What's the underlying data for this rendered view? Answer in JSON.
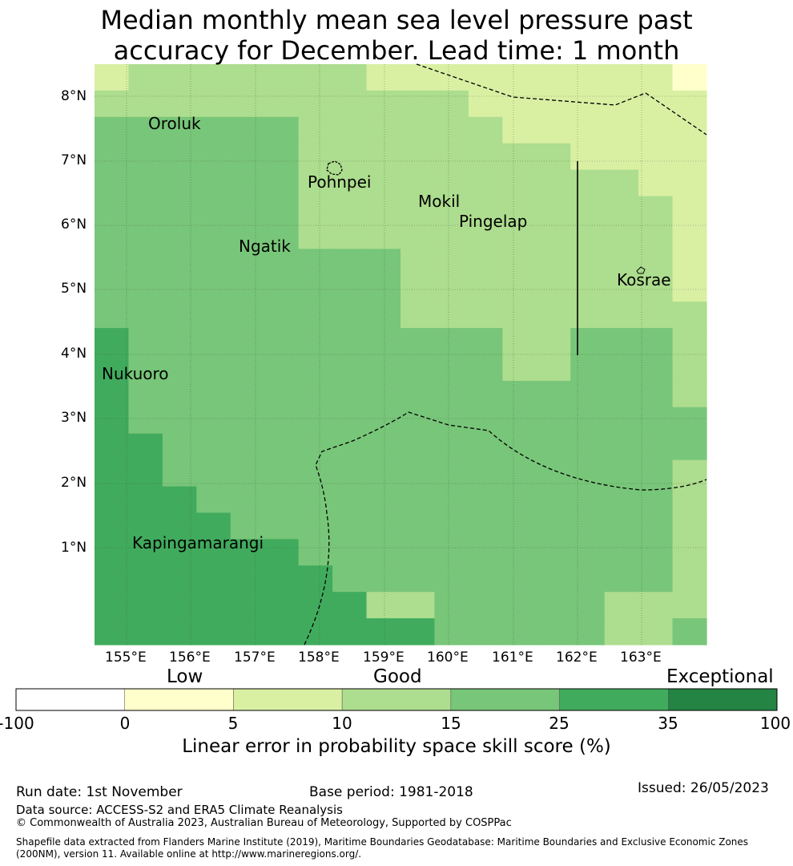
{
  "title_line1": "Median monthly mean sea level pressure past",
  "title_line2": "accuracy for December. Lead time: 1 month",
  "lon_labels": [
    "155°E",
    "156°E",
    "157°E",
    "158°E",
    "159°E",
    "160°E",
    "161°E",
    "162°E",
    "163°E"
  ],
  "lat_labels": [
    "8°N",
    "7°N",
    "6°N",
    "5°N",
    "4°N",
    "3°N",
    "2°N",
    "1°N"
  ],
  "places": [
    "Oroluk",
    "Pohnpei",
    "Mokil",
    "Pingelap",
    "Ngatik",
    "Kosrae",
    "Nukuoro",
    "Kapingamarangi"
  ],
  "colorbar": {
    "category_low": "Low",
    "category_good": "Good",
    "category_exceptional": "Exceptional",
    "ticks": [
      "-100",
      "0",
      "5",
      "10",
      "15",
      "25",
      "35",
      "100"
    ],
    "colors": [
      "#ffffff",
      "#ffffcc",
      "#d9f0a3",
      "#addd8e",
      "#78c679",
      "#41ab5d",
      "#238443"
    ],
    "title": "Linear error in probability space skill score (%)"
  },
  "footer": {
    "run_date": "Run date: 1st November",
    "base_period": "Base period: 1981-2018",
    "issued": "Issued: 26/05/2023",
    "data_source": "Data source: ACCESS-S2 and ERA5 Climate Reanalysis",
    "copyright": "© Commonwealth of Australia 2023, Australian Bureau of Meteorology, Supported by COSPPac",
    "shapefile_line1": "Shapefile data extracted from Flanders Marine Institute (2019), Maritime Boundaries Geodatabase: Maritime Boundaries and Exclusive Economic Zones",
    "shapefile_line2": "(200NM), version 11. Available online at http://www.marineregions.org/."
  },
  "grid_skill_classes": [
    [
      2,
      3,
      3,
      3,
      3,
      3,
      3,
      3,
      2,
      2,
      2,
      2,
      2,
      2,
      2,
      2,
      2,
      1
    ],
    [
      3,
      3,
      3,
      3,
      3,
      3,
      3,
      3,
      3,
      3,
      3,
      2,
      2,
      2,
      2,
      2,
      2,
      2
    ],
    [
      4,
      4,
      4,
      4,
      4,
      4,
      3,
      3,
      3,
      3,
      3,
      3,
      2,
      2,
      2,
      2,
      2,
      2
    ],
    [
      4,
      4,
      4,
      4,
      4,
      4,
      3,
      3,
      3,
      3,
      3,
      3,
      3,
      3,
      2,
      2,
      2,
      2
    ],
    [
      4,
      4,
      4,
      4,
      4,
      4,
      3,
      3,
      3,
      3,
      3,
      3,
      3,
      3,
      3,
      3,
      2,
      2
    ],
    [
      4,
      4,
      4,
      4,
      4,
      4,
      3,
      3,
      3,
      3,
      3,
      3,
      3,
      3,
      3,
      3,
      3,
      2
    ],
    [
      4,
      4,
      4,
      4,
      4,
      4,
      3,
      3,
      3,
      3,
      3,
      3,
      3,
      3,
      3,
      3,
      3,
      2
    ],
    [
      4,
      4,
      4,
      4,
      4,
      4,
      4,
      4,
      4,
      3,
      3,
      3,
      3,
      3,
      3,
      3,
      3,
      2
    ],
    [
      4,
      4,
      4,
      4,
      4,
      4,
      4,
      4,
      4,
      3,
      3,
      3,
      3,
      3,
      3,
      3,
      3,
      2
    ],
    [
      4,
      4,
      4,
      4,
      4,
      4,
      4,
      4,
      4,
      3,
      3,
      3,
      3,
      3,
      3,
      3,
      3,
      3
    ],
    [
      5,
      4,
      4,
      4,
      4,
      4,
      4,
      4,
      4,
      4,
      4,
      4,
      3,
      3,
      4,
      4,
      4,
      3
    ],
    [
      5,
      4,
      4,
      4,
      4,
      4,
      4,
      4,
      4,
      4,
      4,
      4,
      3,
      3,
      4,
      4,
      4,
      3
    ],
    [
      5,
      4,
      4,
      4,
      4,
      4,
      4,
      4,
      4,
      4,
      4,
      4,
      4,
      4,
      4,
      4,
      4,
      3
    ],
    [
      5,
      4,
      4,
      4,
      4,
      4,
      4,
      4,
      4,
      4,
      4,
      4,
      4,
      4,
      4,
      4,
      4,
      4
    ],
    [
      5,
      5,
      4,
      4,
      4,
      4,
      4,
      4,
      4,
      4,
      4,
      4,
      4,
      4,
      4,
      4,
      4,
      4
    ],
    [
      5,
      5,
      4,
      4,
      4,
      4,
      4,
      4,
      4,
      4,
      4,
      4,
      4,
      4,
      4,
      4,
      4,
      3
    ],
    [
      5,
      5,
      5,
      4,
      4,
      4,
      4,
      4,
      4,
      4,
      4,
      4,
      4,
      4,
      4,
      4,
      4,
      3
    ],
    [
      5,
      5,
      5,
      5,
      4,
      4,
      4,
      4,
      4,
      4,
      4,
      4,
      4,
      4,
      4,
      4,
      4,
      3
    ],
    [
      5,
      5,
      5,
      5,
      5,
      5,
      4,
      4,
      4,
      4,
      4,
      4,
      4,
      4,
      4,
      4,
      4,
      3
    ],
    [
      5,
      5,
      5,
      5,
      5,
      5,
      5,
      4,
      4,
      4,
      4,
      4,
      4,
      4,
      4,
      4,
      4,
      3
    ],
    [
      5,
      5,
      5,
      5,
      5,
      5,
      5,
      5,
      3,
      3,
      4,
      4,
      4,
      4,
      4,
      3,
      3,
      3
    ],
    [
      5,
      5,
      5,
      5,
      5,
      5,
      5,
      5,
      5,
      5,
      4,
      4,
      4,
      4,
      4,
      3,
      3,
      4
    ]
  ]
}
